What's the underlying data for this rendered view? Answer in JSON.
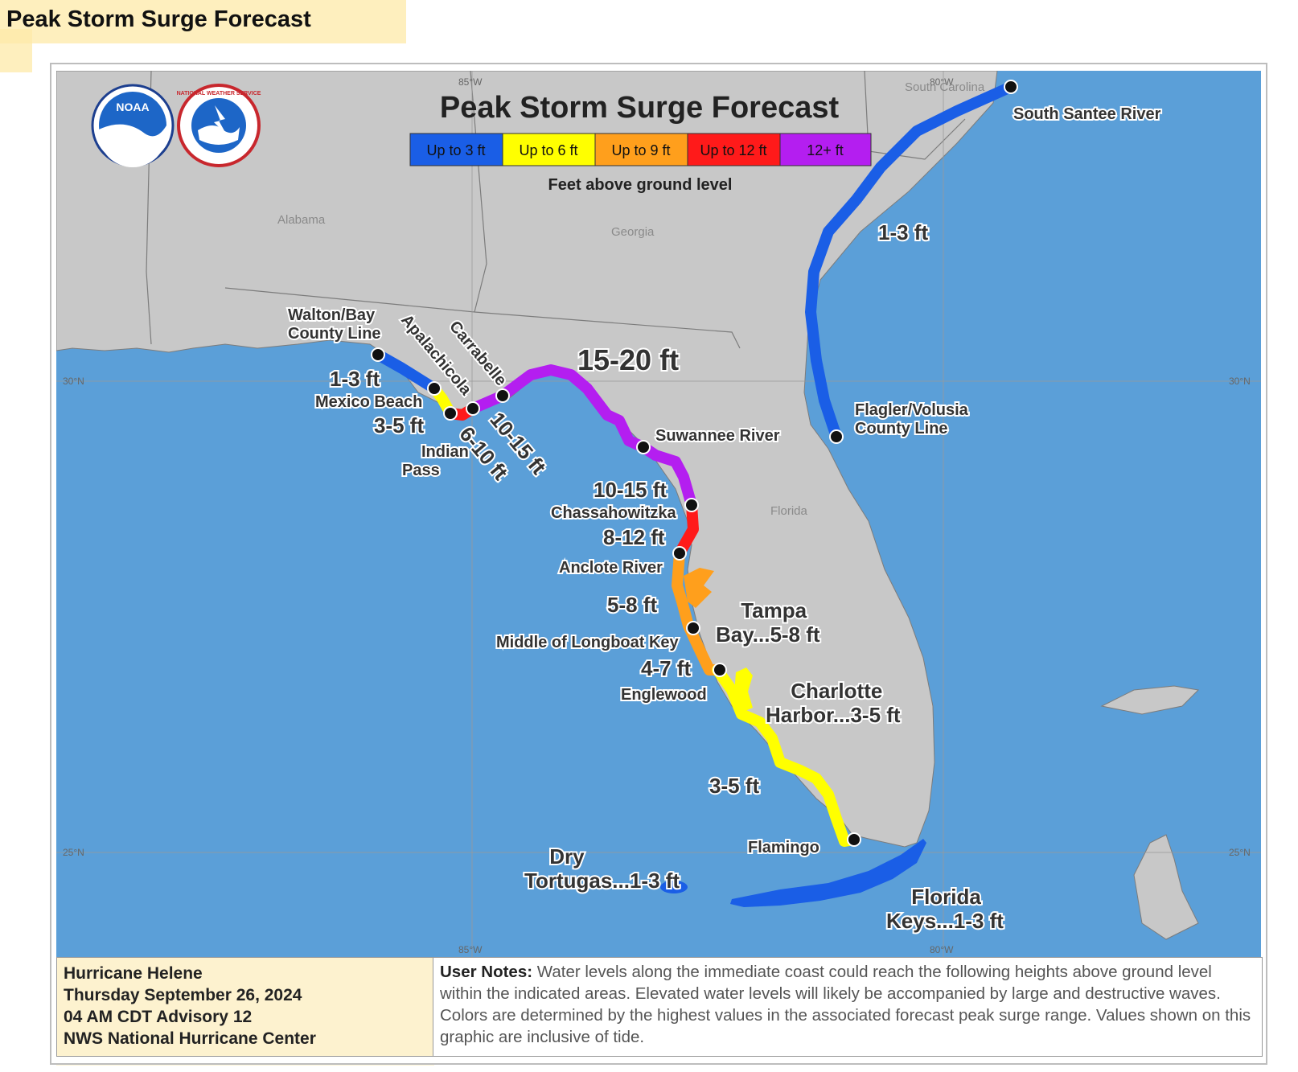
{
  "page_title": "Peak Storm Surge Forecast",
  "map": {
    "title": "Peak Storm Surge Forecast",
    "legend_items": [
      {
        "label": "Up to 3 ft",
        "color": "#1a5ee6"
      },
      {
        "label": "Up to 6 ft",
        "color": "#ffff00"
      },
      {
        "label": "Up to 9 ft",
        "color": "#ff9f1c"
      },
      {
        "label": "Up to 12 ft",
        "color": "#ff1a1a"
      },
      {
        "label": "12+ ft",
        "color": "#b41ef0"
      }
    ],
    "legend_caption": "Feet above ground level",
    "states": [
      "Alabama",
      "Georgia",
      "South Carolina",
      "Florida"
    ],
    "gridlines": {
      "lon": [
        "85°W",
        "80°W"
      ],
      "lat": [
        "30°N",
        "25°N"
      ]
    },
    "logos": [
      "noaa-logo",
      "national-weather-service-logo"
    ],
    "logo_texts": [
      "NOAA",
      "NATIONAL WEATHER SERVICE"
    ],
    "water_color": "#5b9fd8",
    "land_color": "#c8c8c8",
    "points": [
      "Walton/Bay County Line",
      "Mexico Beach",
      "Indian Pass",
      "Apalachicola",
      "Carrabelle",
      "Suwannee River",
      "Chassahowitzka",
      "Anclote River",
      "Middle of Longboat Key",
      "Englewood",
      "Flamingo",
      "Flagler/Volusia County Line",
      "South Santee River"
    ],
    "surge_ranges": [
      "1-3 ft",
      "3-5 ft",
      "6-10 ft",
      "10-15 ft",
      "15-20 ft",
      "10-15 ft",
      "8-12 ft",
      "5-8 ft",
      "4-7 ft",
      "3-5 ft",
      "1-3 ft"
    ],
    "areas": [
      "Tampa Bay...5-8 ft",
      "Charlotte Harbor...3-5 ft",
      "Dry Tortugas...1-3 ft",
      "Florida Keys...1-3 ft"
    ]
  },
  "info": {
    "storm": "Hurricane Helene",
    "date": "Thursday September 26, 2024",
    "advisory": "04 AM CDT Advisory 12",
    "issuer": "NWS National Hurricane Center",
    "notes_label": "User Notes:",
    "notes_text": "Water levels along the immediate coast could reach the following heights above ground level within the indicated areas. Elevated water levels will likely be accompanied by large and destructive waves. Colors are determined by the highest values in the associated forecast peak surge range. Values shown on this graphic are inclusive of tide."
  }
}
